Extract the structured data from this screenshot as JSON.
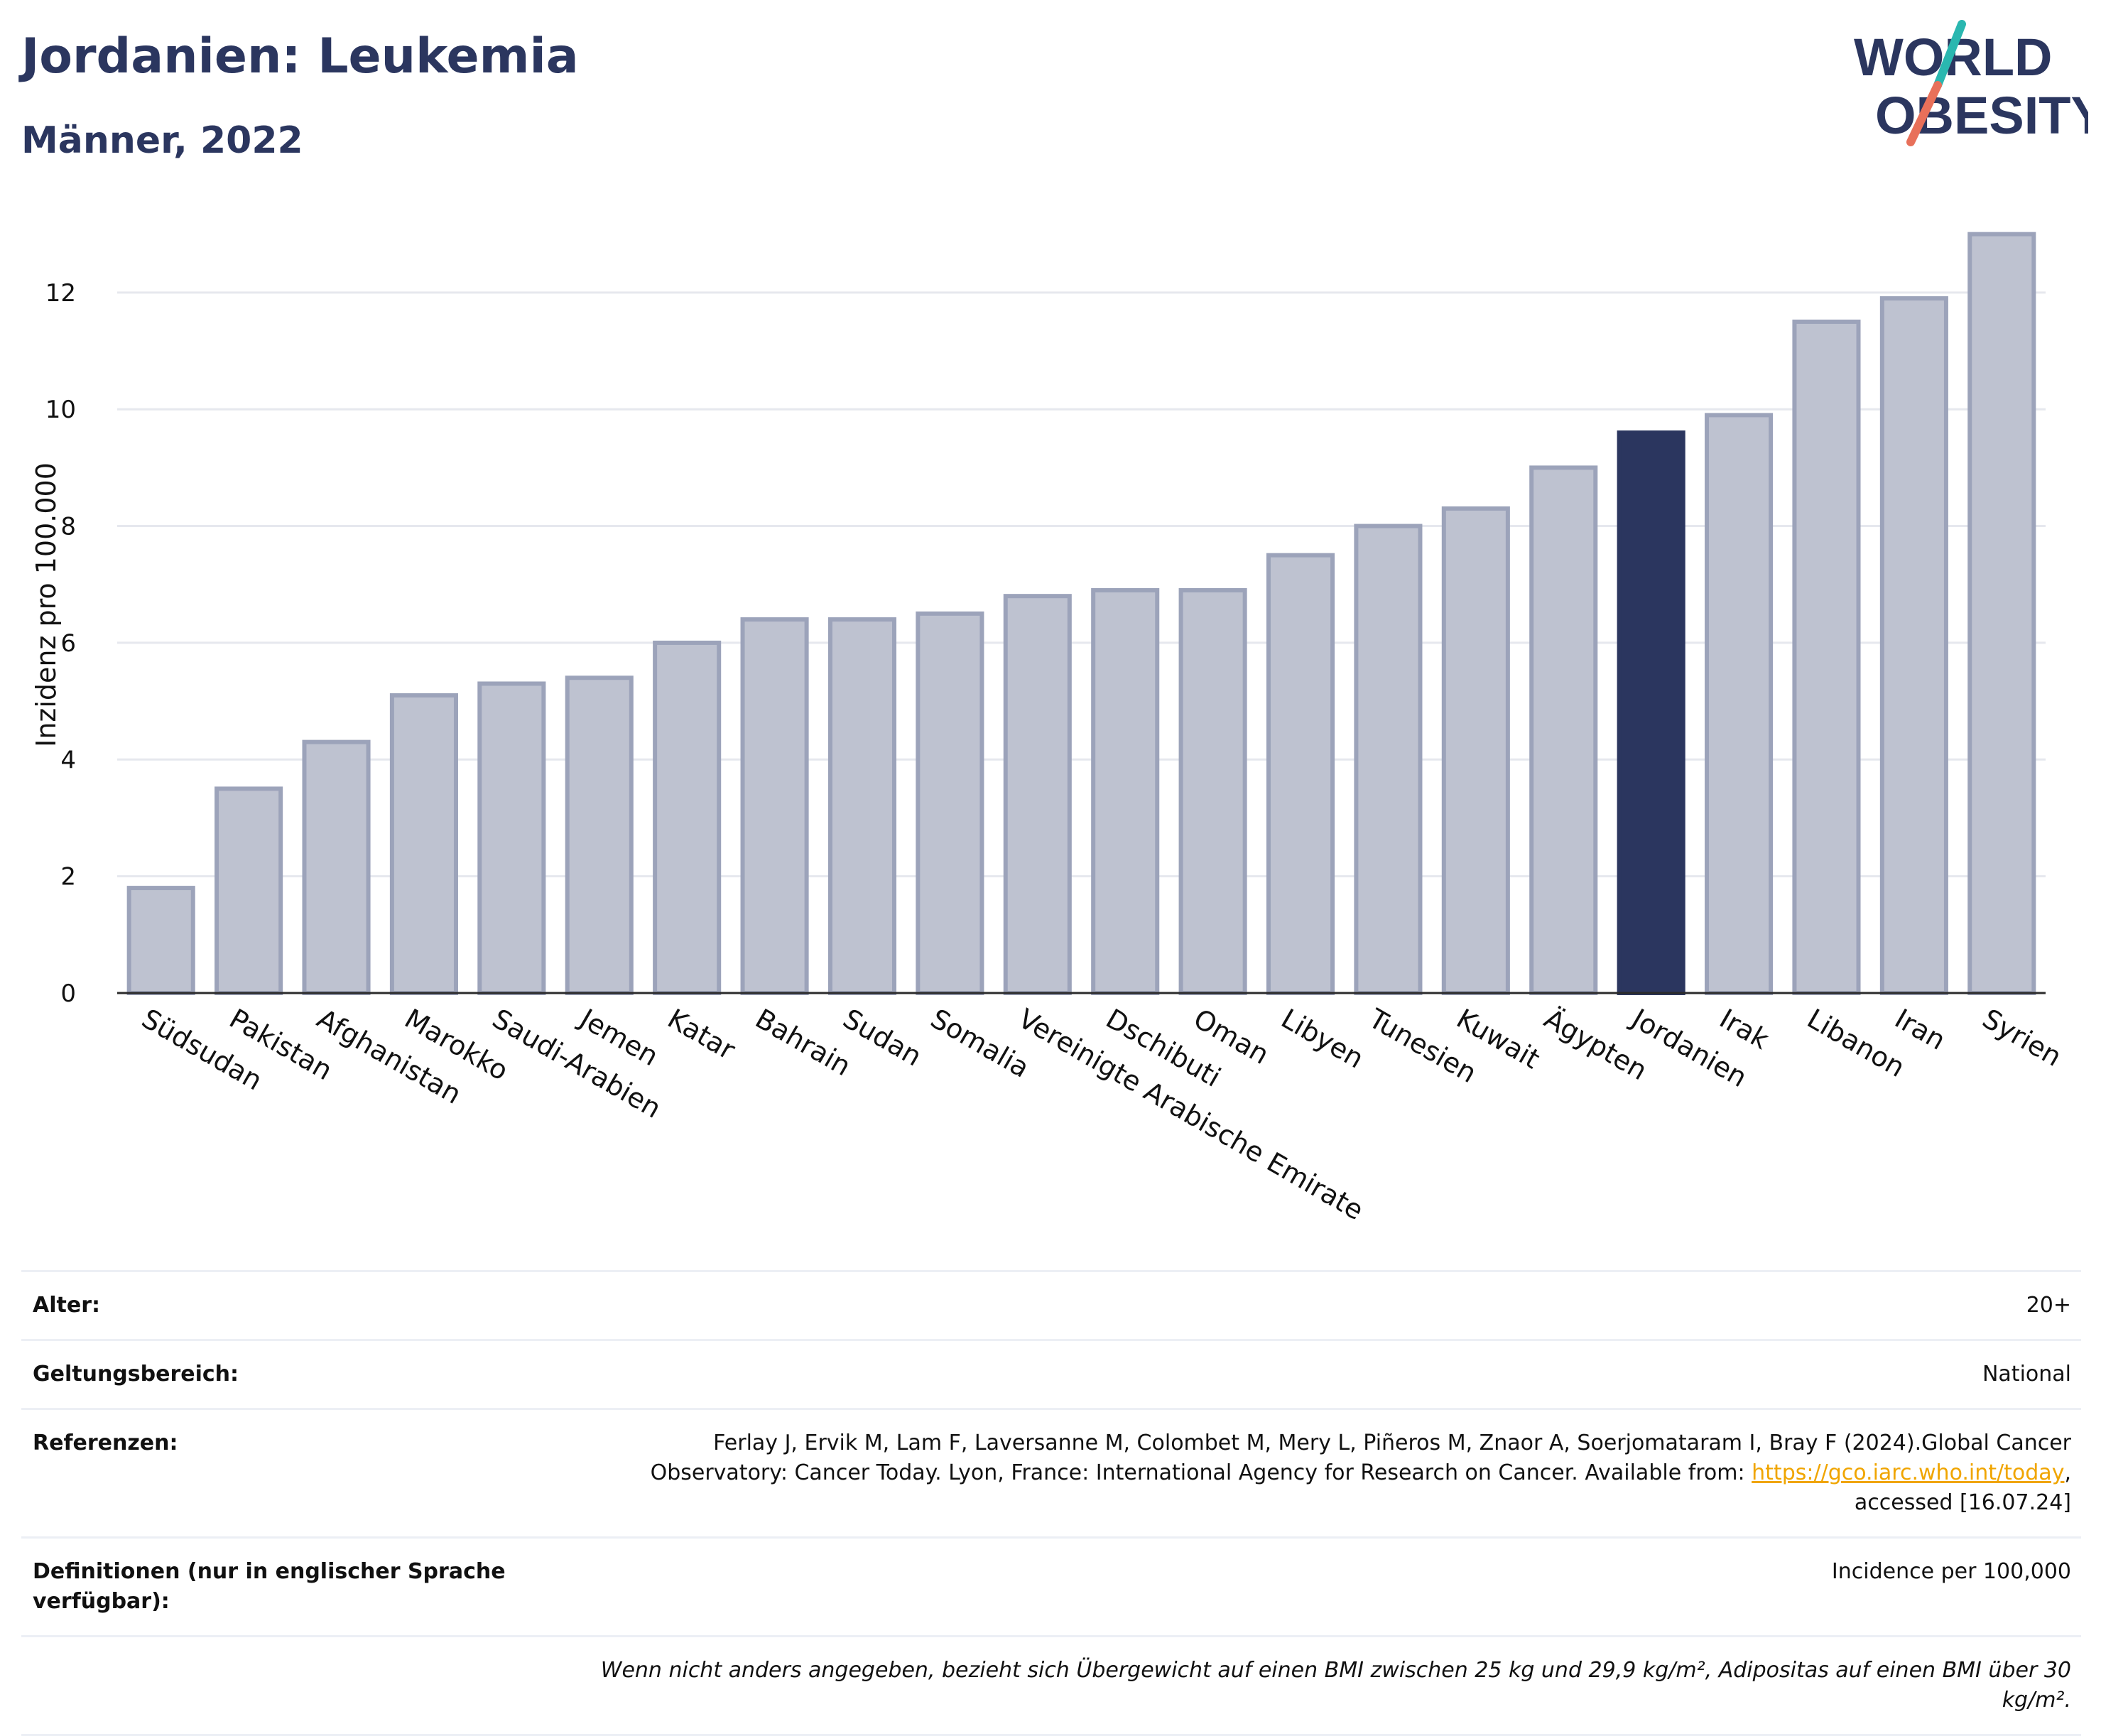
{
  "header": {
    "title": "Jordanien: Leukemia",
    "subtitle": "Männer, 2022"
  },
  "logo": {
    "line1": "WORLD",
    "line2": "OBESITY",
    "colors": {
      "text": "#2b365f",
      "slash_top": "#2ab7b0",
      "slash_bottom": "#e8705a"
    }
  },
  "chart_data": {
    "type": "bar",
    "title": "",
    "xlabel": "",
    "ylabel": "Inzidenz pro 100.000",
    "ylim": [
      0,
      13.3
    ],
    "yticks": [
      0,
      2,
      4,
      6,
      8,
      10,
      12
    ],
    "grid": true,
    "highlight": "Jordanien",
    "colors": {
      "bar": "#bec2d0",
      "bar_edge": "#9ca3ba",
      "highlight": "#2b365f",
      "grid": "#e6e8ee",
      "axis": "#2b2b2b"
    },
    "categories": [
      "Südsudan",
      "Pakistan",
      "Afghanistan",
      "Marokko",
      "Saudi-Arabien",
      "Jemen",
      "Katar",
      "Bahrain",
      "Sudan",
      "Somalia",
      "Vereinigte Arabische Emirate",
      "Dschibuti",
      "Oman",
      "Libyen",
      "Tunesien",
      "Kuwait",
      "Ägypten",
      "Jordanien",
      "Irak",
      "Libanon",
      "Iran",
      "Syrien"
    ],
    "values": [
      1.8,
      3.5,
      4.3,
      5.1,
      5.3,
      5.4,
      6.0,
      6.4,
      6.4,
      6.5,
      6.8,
      6.9,
      6.9,
      7.5,
      8.0,
      8.3,
      9.0,
      9.6,
      9.9,
      11.5,
      11.9,
      13.0
    ]
  },
  "meta": {
    "age_label": "Alter:",
    "age_value": "20+",
    "scope_label": "Geltungsbereich:",
    "scope_value": "National",
    "refs_label": "Referenzen:",
    "refs_text": "Ferlay J, Ervik M, Lam F, Laversanne M, Colombet M, Mery L, Piñeros M, Znaor A, Soerjomataram I, Bray F (2024).Global Cancer Observatory: Cancer Today. Lyon, France: International Agency for Research on Cancer. Available from:",
    "refs_link": "https://gco.iarc.who.int/today",
    "refs_tail": ", accessed [16.07.24]",
    "defs_label": "Definitionen (nur in englischer Sprache verfügbar):",
    "defs_value": "Incidence per 100,000",
    "note": "Wenn nicht anders angegeben, bezieht sich Übergewicht auf einen BMI zwischen 25 kg und 29,9 kg/m², Adipositas auf einen BMI über 30 kg/m²."
  }
}
